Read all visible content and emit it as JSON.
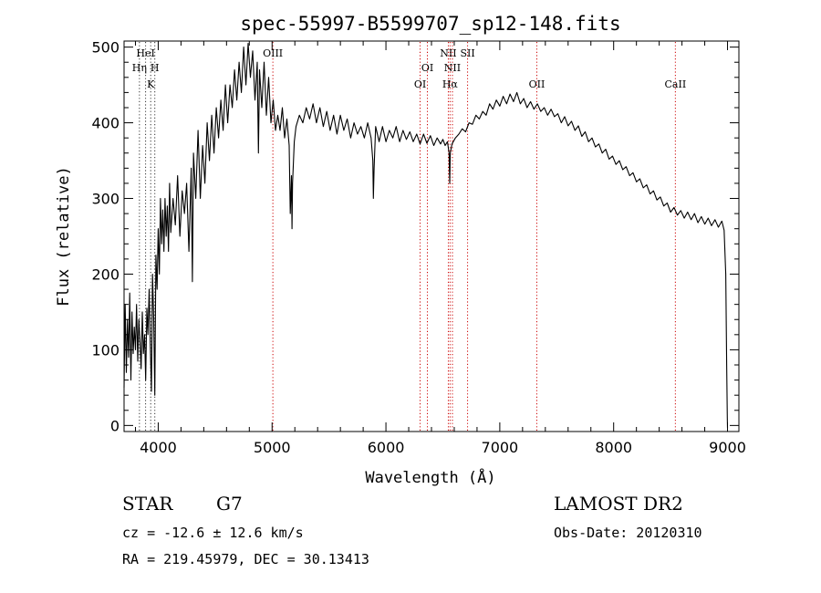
{
  "chart_data": {
    "type": "line",
    "title": "spec-55997-B5599707_sp12-148.fits",
    "xlabel": "Wavelength (Å)",
    "ylabel": "Flux (relative)",
    "xlim": [
      3700,
      9100
    ],
    "ylim": [
      -8,
      508
    ],
    "xticks": [
      4000,
      5000,
      6000,
      7000,
      8000,
      9000
    ],
    "yticks": [
      0,
      100,
      200,
      300,
      400,
      500
    ],
    "colors": {
      "spectrum": "#000000",
      "line_marker": "#cc0000"
    },
    "series": [
      {
        "points": [
          [
            3700,
            50
          ],
          [
            3710,
            160
          ],
          [
            3720,
            70
          ],
          [
            3730,
            140
          ],
          [
            3740,
            90
          ],
          [
            3750,
            175
          ],
          [
            3760,
            60
          ],
          [
            3770,
            150
          ],
          [
            3780,
            95
          ],
          [
            3790,
            130
          ],
          [
            3800,
            100
          ],
          [
            3810,
            160
          ],
          [
            3820,
            85
          ],
          [
            3830,
            140
          ],
          [
            3840,
            110
          ],
          [
            3850,
            75
          ],
          [
            3860,
            150
          ],
          [
            3870,
            95
          ],
          [
            3880,
            120
          ],
          [
            3890,
            60
          ],
          [
            3900,
            155
          ],
          [
            3910,
            120
          ],
          [
            3920,
            180
          ],
          [
            3930,
            110
          ],
          [
            3940,
            45
          ],
          [
            3950,
            200
          ],
          [
            3960,
            140
          ],
          [
            3970,
            40
          ],
          [
            3980,
            225
          ],
          [
            3990,
            180
          ],
          [
            4000,
            260
          ],
          [
            4010,
            200
          ],
          [
            4020,
            300
          ],
          [
            4030,
            240
          ],
          [
            4040,
            285
          ],
          [
            4050,
            230
          ],
          [
            4060,
            300
          ],
          [
            4070,
            250
          ],
          [
            4080,
            290
          ],
          [
            4090,
            230
          ],
          [
            4100,
            320
          ],
          [
            4110,
            255
          ],
          [
            4130,
            300
          ],
          [
            4150,
            265
          ],
          [
            4170,
            330
          ],
          [
            4190,
            250
          ],
          [
            4210,
            310
          ],
          [
            4230,
            280
          ],
          [
            4250,
            320
          ],
          [
            4270,
            230
          ],
          [
            4290,
            340
          ],
          [
            4300,
            190
          ],
          [
            4310,
            360
          ],
          [
            4330,
            300
          ],
          [
            4350,
            390
          ],
          [
            4370,
            300
          ],
          [
            4390,
            370
          ],
          [
            4410,
            320
          ],
          [
            4430,
            400
          ],
          [
            4450,
            350
          ],
          [
            4470,
            410
          ],
          [
            4490,
            360
          ],
          [
            4510,
            420
          ],
          [
            4530,
            380
          ],
          [
            4550,
            430
          ],
          [
            4570,
            390
          ],
          [
            4590,
            450
          ],
          [
            4610,
            400
          ],
          [
            4630,
            450
          ],
          [
            4650,
            420
          ],
          [
            4670,
            470
          ],
          [
            4690,
            430
          ],
          [
            4710,
            480
          ],
          [
            4730,
            440
          ],
          [
            4750,
            500
          ],
          [
            4770,
            450
          ],
          [
            4790,
            505
          ],
          [
            4810,
            460
          ],
          [
            4830,
            495
          ],
          [
            4850,
            430
          ],
          [
            4870,
            480
          ],
          [
            4880,
            360
          ],
          [
            4890,
            470
          ],
          [
            4910,
            420
          ],
          [
            4930,
            480
          ],
          [
            4950,
            410
          ],
          [
            4970,
            460
          ],
          [
            4990,
            400
          ],
          [
            5010,
            430
          ],
          [
            5030,
            390
          ],
          [
            5050,
            410
          ],
          [
            5070,
            390
          ],
          [
            5090,
            420
          ],
          [
            5110,
            380
          ],
          [
            5130,
            405
          ],
          [
            5150,
            370
          ],
          [
            5160,
            280
          ],
          [
            5170,
            330
          ],
          [
            5175,
            260
          ],
          [
            5180,
            320
          ],
          [
            5195,
            375
          ],
          [
            5210,
            395
          ],
          [
            5240,
            410
          ],
          [
            5270,
            400
          ],
          [
            5300,
            420
          ],
          [
            5330,
            405
          ],
          [
            5360,
            425
          ],
          [
            5390,
            400
          ],
          [
            5420,
            420
          ],
          [
            5450,
            395
          ],
          [
            5480,
            415
          ],
          [
            5510,
            390
          ],
          [
            5540,
            410
          ],
          [
            5570,
            385
          ],
          [
            5600,
            410
          ],
          [
            5630,
            390
          ],
          [
            5660,
            405
          ],
          [
            5690,
            380
          ],
          [
            5720,
            400
          ],
          [
            5750,
            385
          ],
          [
            5780,
            395
          ],
          [
            5810,
            380
          ],
          [
            5840,
            400
          ],
          [
            5870,
            380
          ],
          [
            5885,
            350
          ],
          [
            5890,
            300
          ],
          [
            5896,
            340
          ],
          [
            5910,
            395
          ],
          [
            5940,
            375
          ],
          [
            5970,
            395
          ],
          [
            6000,
            375
          ],
          [
            6030,
            390
          ],
          [
            6060,
            380
          ],
          [
            6090,
            395
          ],
          [
            6120,
            375
          ],
          [
            6150,
            390
          ],
          [
            6180,
            378
          ],
          [
            6210,
            388
          ],
          [
            6240,
            375
          ],
          [
            6270,
            385
          ],
          [
            6300,
            372
          ],
          [
            6330,
            385
          ],
          [
            6360,
            373
          ],
          [
            6390,
            383
          ],
          [
            6420,
            370
          ],
          [
            6450,
            380
          ],
          [
            6480,
            372
          ],
          [
            6500,
            378
          ],
          [
            6520,
            370
          ],
          [
            6540,
            375
          ],
          [
            6555,
            360
          ],
          [
            6560,
            320
          ],
          [
            6565,
            360
          ],
          [
            6580,
            372
          ],
          [
            6610,
            380
          ],
          [
            6640,
            385
          ],
          [
            6670,
            392
          ],
          [
            6700,
            388
          ],
          [
            6730,
            400
          ],
          [
            6760,
            398
          ],
          [
            6790,
            410
          ],
          [
            6820,
            405
          ],
          [
            6850,
            415
          ],
          [
            6880,
            410
          ],
          [
            6910,
            425
          ],
          [
            6940,
            418
          ],
          [
            6970,
            430
          ],
          [
            7000,
            422
          ],
          [
            7030,
            435
          ],
          [
            7060,
            425
          ],
          [
            7090,
            438
          ],
          [
            7120,
            428
          ],
          [
            7150,
            440
          ],
          [
            7180,
            425
          ],
          [
            7210,
            432
          ],
          [
            7240,
            420
          ],
          [
            7270,
            428
          ],
          [
            7300,
            418
          ],
          [
            7330,
            425
          ],
          [
            7360,
            415
          ],
          [
            7390,
            420
          ],
          [
            7420,
            410
          ],
          [
            7450,
            418
          ],
          [
            7480,
            408
          ],
          [
            7510,
            412
          ],
          [
            7540,
            400
          ],
          [
            7570,
            408
          ],
          [
            7600,
            396
          ],
          [
            7630,
            402
          ],
          [
            7660,
            390
          ],
          [
            7690,
            396
          ],
          [
            7720,
            382
          ],
          [
            7750,
            388
          ],
          [
            7780,
            375
          ],
          [
            7810,
            380
          ],
          [
            7840,
            368
          ],
          [
            7870,
            372
          ],
          [
            7900,
            360
          ],
          [
            7930,
            365
          ],
          [
            7960,
            352
          ],
          [
            7990,
            356
          ],
          [
            8020,
            345
          ],
          [
            8050,
            350
          ],
          [
            8080,
            338
          ],
          [
            8110,
            342
          ],
          [
            8140,
            330
          ],
          [
            8170,
            334
          ],
          [
            8200,
            322
          ],
          [
            8230,
            326
          ],
          [
            8260,
            314
          ],
          [
            8290,
            318
          ],
          [
            8320,
            306
          ],
          [
            8350,
            310
          ],
          [
            8380,
            298
          ],
          [
            8410,
            302
          ],
          [
            8440,
            290
          ],
          [
            8470,
            294
          ],
          [
            8500,
            282
          ],
          [
            8530,
            288
          ],
          [
            8560,
            278
          ],
          [
            8590,
            284
          ],
          [
            8620,
            274
          ],
          [
            8650,
            282
          ],
          [
            8680,
            272
          ],
          [
            8710,
            280
          ],
          [
            8740,
            268
          ],
          [
            8770,
            276
          ],
          [
            8800,
            266
          ],
          [
            8830,
            274
          ],
          [
            8860,
            264
          ],
          [
            8890,
            272
          ],
          [
            8920,
            262
          ],
          [
            8950,
            270
          ],
          [
            8970,
            258
          ],
          [
            8985,
            200
          ],
          [
            8993,
            80
          ],
          [
            8998,
            10
          ],
          [
            9000,
            -3
          ]
        ]
      }
    ],
    "lines": [
      {
        "label": "HeI",
        "wave": 3889,
        "row": 1,
        "color": "black"
      },
      {
        "label": "Hη",
        "wave": 3835,
        "row": 2,
        "color": "black"
      },
      {
        "label": "H",
        "wave": 3970,
        "row": 2,
        "color": "black"
      },
      {
        "label": "K",
        "wave": 3934,
        "row": 3,
        "color": "black"
      },
      {
        "label": "OIII",
        "wave": 5007,
        "row": 1,
        "color": "red"
      },
      {
        "label": "OI",
        "wave": 6300,
        "row": 3,
        "color": "red"
      },
      {
        "label": "OI",
        "wave": 6364,
        "row": 2,
        "color": "red"
      },
      {
        "label": "NII",
        "wave": 6548,
        "row": 1,
        "color": "red"
      },
      {
        "label": "NII",
        "wave": 6584,
        "row": 2,
        "color": "red"
      },
      {
        "label": "Hα",
        "wave": 6563,
        "row": 3,
        "color": "red"
      },
      {
        "label": "SII",
        "wave": 6717,
        "row": 1,
        "color": "red"
      },
      {
        "label": "OII",
        "wave": 7325,
        "row": 3,
        "color": "red"
      },
      {
        "label": "CaII",
        "wave": 8542,
        "row": 3,
        "color": "red"
      }
    ]
  },
  "info": {
    "object_class": "STAR",
    "subclass": "G7",
    "survey": "LAMOST DR2",
    "cz": "cz = -12.6 ± 12.6 km/s",
    "obs_date": "Obs-Date: 20120310",
    "radec": "RA = 219.45979, DEC =  30.13413"
  }
}
